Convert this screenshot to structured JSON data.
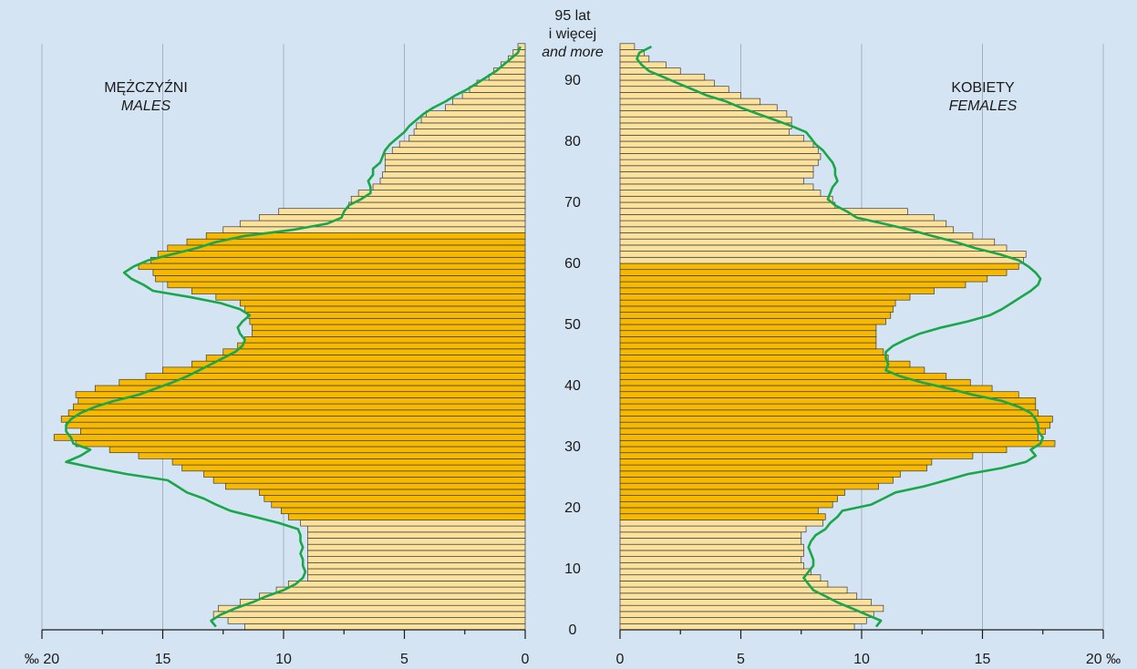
{
  "chart_data": {
    "type": "bar",
    "orientation": "horizontal",
    "subtype": "population-pyramid",
    "unit": "‰",
    "left_panel": {
      "title": "MĘŻCZYŹNI",
      "subtitle": "MALES",
      "ticks": [
        "‰ 20",
        "15",
        "10",
        "5",
        "0"
      ],
      "xlim": [
        20,
        0
      ]
    },
    "right_panel": {
      "title": "KOBIETY",
      "subtitle": "FEMALES",
      "ticks": [
        "0",
        "5",
        "10",
        "15",
        "20 ‰"
      ],
      "xlim": [
        0,
        20
      ]
    },
    "age_axis": {
      "ticks": [
        "0",
        "10",
        "20",
        "30",
        "40",
        "50",
        "60",
        "70",
        "80",
        "90"
      ],
      "top_label_lines": [
        "95 lat",
        "i więcej",
        "and more"
      ],
      "range": [
        0,
        95
      ]
    },
    "categories_age": [
      0,
      1,
      2,
      3,
      4,
      5,
      6,
      7,
      8,
      9,
      10,
      11,
      12,
      13,
      14,
      15,
      16,
      17,
      18,
      19,
      20,
      21,
      22,
      23,
      24,
      25,
      26,
      27,
      28,
      29,
      30,
      31,
      32,
      33,
      34,
      35,
      36,
      37,
      38,
      39,
      40,
      41,
      42,
      43,
      44,
      45,
      46,
      47,
      48,
      49,
      50,
      51,
      52,
      53,
      54,
      55,
      56,
      57,
      58,
      59,
      60,
      61,
      62,
      63,
      64,
      65,
      66,
      67,
      68,
      69,
      70,
      71,
      72,
      73,
      74,
      75,
      76,
      77,
      78,
      79,
      80,
      81,
      82,
      83,
      84,
      85,
      86,
      87,
      88,
      89,
      90,
      91,
      92,
      93,
      94,
      95
    ],
    "series": [
      {
        "name": "MALES",
        "values": [
          11.6,
          12.3,
          12.9,
          12.7,
          11.8,
          11.0,
          10.3,
          9.8,
          9.0,
          9.0,
          9.0,
          9.0,
          9.0,
          9.0,
          9.0,
          9.0,
          9.0,
          9.3,
          9.8,
          10.1,
          10.5,
          10.8,
          11.0,
          12.4,
          12.9,
          13.3,
          14.2,
          14.6,
          16.0,
          17.2,
          18.6,
          19.5,
          18.4,
          19.0,
          19.2,
          18.9,
          18.7,
          18.5,
          18.6,
          17.8,
          16.8,
          15.7,
          15.0,
          13.8,
          13.2,
          12.5,
          11.9,
          11.6,
          11.3,
          11.3,
          11.4,
          11.5,
          11.6,
          11.8,
          12.8,
          13.8,
          14.8,
          15.3,
          15.4,
          16.0,
          15.5,
          15.2,
          14.8,
          14.0,
          13.2,
          12.5,
          11.8,
          11.0,
          10.2,
          7.3,
          7.2,
          6.9,
          6.3,
          6.0,
          5.9,
          5.8,
          5.8,
          5.8,
          5.5,
          5.2,
          4.8,
          4.6,
          4.5,
          4.3,
          4.1,
          3.3,
          3.0,
          2.6,
          2.3,
          2.0,
          1.5,
          1.3,
          1.0,
          0.7,
          0.5,
          0.3
        ],
        "color_dark": "#f7b800",
        "color_light": "#fbe19c"
      },
      {
        "name": "FEMALES",
        "values": [
          9.7,
          10.2,
          10.5,
          10.9,
          10.4,
          9.8,
          9.4,
          8.6,
          8.3,
          7.9,
          7.6,
          7.5,
          7.6,
          7.6,
          7.5,
          7.5,
          7.7,
          8.4,
          8.5,
          8.2,
          8.8,
          9.0,
          9.3,
          10.7,
          11.3,
          11.6,
          12.7,
          12.9,
          14.6,
          16.0,
          18.0,
          17.3,
          17.6,
          17.8,
          17.9,
          17.3,
          17.2,
          17.2,
          16.5,
          15.4,
          14.5,
          13.5,
          12.6,
          12.0,
          11.1,
          10.9,
          10.6,
          10.6,
          10.6,
          10.6,
          11.0,
          11.2,
          11.3,
          11.4,
          12.0,
          13.0,
          14.3,
          15.2,
          16.0,
          16.5,
          16.7,
          16.8,
          16.0,
          15.5,
          14.6,
          13.8,
          13.5,
          13.0,
          11.9,
          8.9,
          8.8,
          8.3,
          8.0,
          7.6,
          8.0,
          8.0,
          8.2,
          8.3,
          8.2,
          8.0,
          7.6,
          7.0,
          7.1,
          7.1,
          6.9,
          6.5,
          5.8,
          5.0,
          4.5,
          3.9,
          3.5,
          2.5,
          1.9,
          1.2,
          1.0,
          0.6
        ],
        "color_dark": "#f7b800",
        "color_light": "#fbe19c"
      }
    ],
    "overlay_lines": [
      {
        "side": "MALES",
        "color": "#1aa64a",
        "points": [
          [
            0,
            12.8
          ],
          [
            1,
            13.0
          ],
          [
            2,
            12.6
          ],
          [
            3,
            12.0
          ],
          [
            4,
            11.3
          ],
          [
            5,
            10.7
          ],
          [
            6,
            10.0
          ],
          [
            7,
            9.5
          ],
          [
            8,
            9.2
          ],
          [
            9,
            9.1
          ],
          [
            10,
            9.2
          ],
          [
            11,
            9.2
          ],
          [
            12,
            9.3
          ],
          [
            13,
            9.2
          ],
          [
            14,
            9.3
          ],
          [
            15,
            9.3
          ],
          [
            16,
            9.4
          ],
          [
            17,
            10.2
          ],
          [
            18,
            11.2
          ],
          [
            19,
            12.2
          ],
          [
            20,
            12.8
          ],
          [
            21,
            13.3
          ],
          [
            22,
            14.0
          ],
          [
            23,
            14.4
          ],
          [
            24,
            14.8
          ],
          [
            25,
            16.5
          ],
          [
            26,
            17.8
          ],
          [
            27,
            19.0
          ],
          [
            28,
            18.4
          ],
          [
            29,
            18.0
          ],
          [
            30,
            18.7
          ],
          [
            31,
            18.8
          ],
          [
            32,
            19.0
          ],
          [
            33,
            19.0
          ],
          [
            34,
            18.8
          ],
          [
            35,
            18.4
          ],
          [
            36,
            17.8
          ],
          [
            37,
            17.0
          ],
          [
            38,
            16.0
          ],
          [
            39,
            15.3
          ],
          [
            40,
            14.6
          ],
          [
            41,
            14.0
          ],
          [
            42,
            13.5
          ],
          [
            43,
            13.0
          ],
          [
            44,
            12.5
          ],
          [
            45,
            12.0
          ],
          [
            46,
            11.7
          ],
          [
            47,
            11.6
          ],
          [
            48,
            11.8
          ],
          [
            49,
            11.9
          ],
          [
            50,
            11.7
          ],
          [
            51,
            11.4
          ],
          [
            52,
            11.8
          ],
          [
            53,
            12.6
          ],
          [
            54,
            13.9
          ],
          [
            55,
            15.4
          ],
          [
            56,
            15.8
          ],
          [
            57,
            16.3
          ],
          [
            58,
            16.6
          ],
          [
            59,
            16.2
          ],
          [
            60,
            15.6
          ],
          [
            61,
            14.6
          ],
          [
            62,
            13.6
          ],
          [
            63,
            12.8
          ],
          [
            64,
            11.6
          ],
          [
            65,
            9.6
          ],
          [
            66,
            8.2
          ],
          [
            67,
            7.6
          ],
          [
            68,
            7.5
          ],
          [
            69,
            7.3
          ],
          [
            70,
            6.8
          ],
          [
            71,
            6.4
          ],
          [
            72,
            6.4
          ],
          [
            73,
            6.5
          ],
          [
            74,
            6.3
          ],
          [
            75,
            6.3
          ],
          [
            76,
            6.0
          ],
          [
            77,
            5.9
          ],
          [
            78,
            5.8
          ],
          [
            79,
            5.6
          ],
          [
            80,
            5.3
          ],
          [
            81,
            5.0
          ],
          [
            82,
            4.8
          ],
          [
            83,
            4.5
          ],
          [
            84,
            4.2
          ],
          [
            85,
            3.8
          ],
          [
            86,
            3.3
          ],
          [
            87,
            2.9
          ],
          [
            88,
            2.4
          ],
          [
            89,
            2.0
          ],
          [
            90,
            1.6
          ],
          [
            91,
            1.2
          ],
          [
            92,
            0.9
          ],
          [
            93,
            0.6
          ],
          [
            94,
            0.3
          ],
          [
            95,
            0.2
          ]
        ]
      },
      {
        "side": "FEMALES",
        "color": "#1aa64a",
        "points": [
          [
            0,
            10.6
          ],
          [
            1,
            10.8
          ],
          [
            2,
            10.2
          ],
          [
            3,
            9.6
          ],
          [
            4,
            9.0
          ],
          [
            5,
            8.5
          ],
          [
            6,
            8.0
          ],
          [
            7,
            7.8
          ],
          [
            8,
            7.6
          ],
          [
            9,
            7.8
          ],
          [
            10,
            8.0
          ],
          [
            11,
            8.0
          ],
          [
            12,
            7.9
          ],
          [
            13,
            7.8
          ],
          [
            14,
            7.9
          ],
          [
            15,
            8.1
          ],
          [
            16,
            8.5
          ],
          [
            17,
            8.7
          ],
          [
            18,
            9.0
          ],
          [
            19,
            9.2
          ],
          [
            20,
            10.4
          ],
          [
            21,
            10.9
          ],
          [
            22,
            11.4
          ],
          [
            23,
            12.6
          ],
          [
            24,
            13.5
          ],
          [
            25,
            14.4
          ],
          [
            26,
            15.8
          ],
          [
            27,
            16.8
          ],
          [
            28,
            17.2
          ],
          [
            29,
            17.0
          ],
          [
            30,
            17.4
          ],
          [
            31,
            17.5
          ],
          [
            32,
            17.3
          ],
          [
            33,
            17.3
          ],
          [
            34,
            17.2
          ],
          [
            35,
            17.0
          ],
          [
            36,
            16.5
          ],
          [
            37,
            15.8
          ],
          [
            38,
            14.6
          ],
          [
            39,
            13.6
          ],
          [
            40,
            12.5
          ],
          [
            41,
            11.6
          ],
          [
            42,
            11.0
          ],
          [
            43,
            11.1
          ],
          [
            44,
            11.0
          ],
          [
            45,
            11.0
          ],
          [
            46,
            11.3
          ],
          [
            47,
            11.8
          ],
          [
            48,
            12.4
          ],
          [
            49,
            13.3
          ],
          [
            50,
            14.4
          ],
          [
            51,
            15.3
          ],
          [
            52,
            15.8
          ],
          [
            53,
            16.2
          ],
          [
            54,
            16.6
          ],
          [
            55,
            17.0
          ],
          [
            56,
            17.3
          ],
          [
            57,
            17.4
          ],
          [
            58,
            17.2
          ],
          [
            59,
            16.9
          ],
          [
            60,
            16.5
          ],
          [
            61,
            15.7
          ],
          [
            62,
            14.7
          ],
          [
            63,
            13.9
          ],
          [
            64,
            12.9
          ],
          [
            65,
            12.0
          ],
          [
            66,
            10.9
          ],
          [
            67,
            9.8
          ],
          [
            68,
            9.4
          ],
          [
            69,
            8.9
          ],
          [
            70,
            8.6
          ],
          [
            71,
            8.7
          ],
          [
            72,
            8.8
          ],
          [
            73,
            9.0
          ],
          [
            74,
            8.9
          ],
          [
            75,
            8.9
          ],
          [
            76,
            8.8
          ],
          [
            77,
            8.6
          ],
          [
            78,
            8.4
          ],
          [
            79,
            8.1
          ],
          [
            80,
            7.9
          ],
          [
            81,
            7.7
          ],
          [
            82,
            7.1
          ],
          [
            83,
            6.4
          ],
          [
            84,
            5.7
          ],
          [
            85,
            5.0
          ],
          [
            86,
            4.4
          ],
          [
            87,
            3.6
          ],
          [
            88,
            3.0
          ],
          [
            89,
            2.4
          ],
          [
            90,
            1.8
          ],
          [
            91,
            1.2
          ],
          [
            92,
            0.9
          ],
          [
            93,
            0.7
          ],
          [
            94,
            0.8
          ],
          [
            95,
            1.3
          ]
        ]
      }
    ],
    "highlight_bands": [
      {
        "side": "MALES",
        "age_from": 18,
        "age_to": 64
      },
      {
        "side": "FEMALES",
        "age_from": 18,
        "age_to": 59
      }
    ],
    "grid": true
  }
}
